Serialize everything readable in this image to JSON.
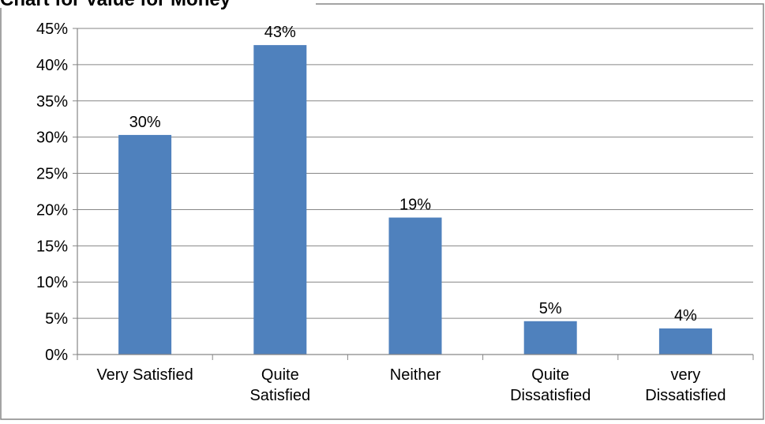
{
  "chart_data": {
    "type": "bar",
    "title": "Chart for Value for Money",
    "categories": [
      [
        "Very Satisfied"
      ],
      [
        "Quite",
        "Satisfied"
      ],
      [
        "Neither"
      ],
      [
        "Quite",
        "Dissatisfied"
      ],
      [
        "very",
        "Dissatisfied"
      ]
    ],
    "values": [
      30.3,
      42.7,
      18.9,
      4.6,
      3.6
    ],
    "data_labels": [
      "30%",
      "43%",
      "19%",
      "5%",
      "4%"
    ],
    "ylim": [
      0,
      45
    ],
    "yticks": [
      0,
      5,
      10,
      15,
      20,
      25,
      30,
      35,
      40,
      45
    ],
    "ytick_labels": [
      "0%",
      "5%",
      "10%",
      "15%",
      "20%",
      "25%",
      "30%",
      "35%",
      "40%",
      "45%"
    ],
    "grid": true,
    "legend": "none",
    "bar_color": "#4F81BD",
    "grid_color": "#868686"
  }
}
